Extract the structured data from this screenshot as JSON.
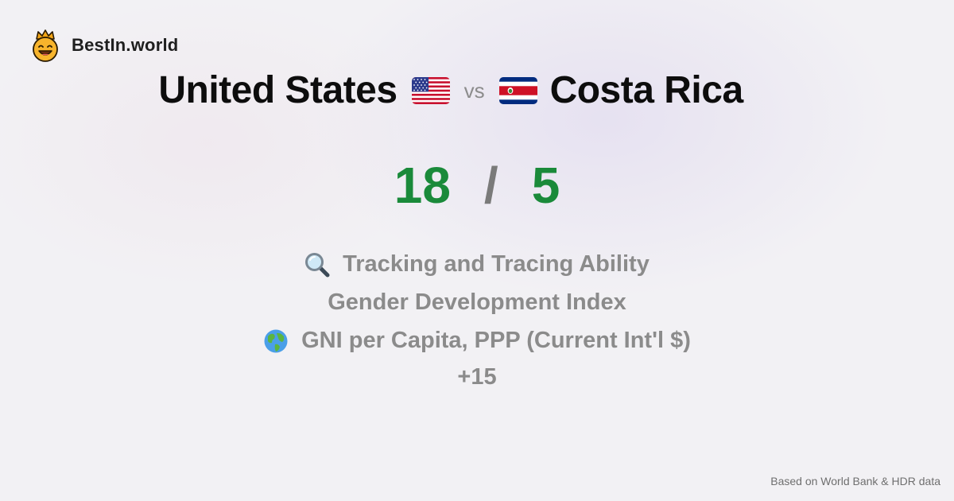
{
  "brand": {
    "name": "BestIn.world",
    "logo_icon": "crowned-smiley-icon"
  },
  "comparison": {
    "left_country": "United States",
    "left_flag": "us-flag-icon",
    "vs_label": "vs",
    "right_country": "Costa Rica",
    "right_flag": "costa-rica-flag-icon"
  },
  "score": {
    "left": "18",
    "separator": "/",
    "right": "5",
    "color": "#1a8a3a"
  },
  "metrics": [
    {
      "icon": "magnifying-glass-icon",
      "label": "Tracking and Tracing Ability"
    },
    {
      "icon": "",
      "label": "Gender Development Index"
    },
    {
      "icon": "globe-icon",
      "label": "GNI per Capita, PPP (Current Int'l $)"
    }
  ],
  "more_label": "+15",
  "footer": {
    "source": "Based on World Bank & HDR data"
  }
}
